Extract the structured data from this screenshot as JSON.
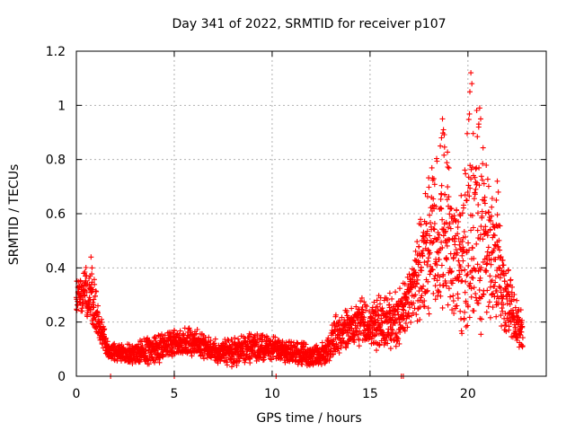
{
  "chart_data": {
    "type": "scatter",
    "title": "Day 341 of 2022, SRMTID for receiver p107",
    "xlabel": "GPS time / hours",
    "ylabel": "SRMTID / TECUs",
    "xlim": [
      0,
      24
    ],
    "ylim": [
      0,
      1.2
    ],
    "xticks": [
      0,
      5,
      10,
      15,
      20
    ],
    "xtick_labels": [
      "0",
      "5",
      "10",
      "15",
      "20"
    ],
    "yticks": [
      0,
      0.2,
      0.4,
      0.6,
      0.8,
      1.0,
      1.2
    ],
    "ytick_labels": [
      "0",
      "0.2",
      "0.4",
      "0.6",
      "0.8",
      "1",
      "1.2"
    ],
    "grid": true,
    "marker": "+",
    "color": "#ff0000",
    "envelope": {
      "description": "approximate median and upper-spread of the point cloud, read from the plot",
      "x": [
        0.0,
        0.4,
        0.8,
        1.2,
        1.6,
        2.0,
        3.0,
        4.0,
        5.0,
        6.0,
        7.0,
        8.0,
        9.0,
        10.0,
        11.0,
        12.0,
        12.8,
        13.3,
        14.0,
        14.5,
        15.0,
        15.5,
        16.0,
        16.5,
        17.0,
        17.5,
        18.0,
        18.4,
        18.8,
        19.2,
        19.6,
        20.0,
        20.4,
        20.8,
        21.2,
        21.6,
        22.0,
        22.4,
        22.8
      ],
      "median": [
        0.28,
        0.3,
        0.27,
        0.17,
        0.1,
        0.08,
        0.08,
        0.09,
        0.12,
        0.12,
        0.09,
        0.08,
        0.1,
        0.1,
        0.08,
        0.07,
        0.08,
        0.15,
        0.17,
        0.19,
        0.19,
        0.18,
        0.19,
        0.21,
        0.26,
        0.36,
        0.44,
        0.5,
        0.52,
        0.42,
        0.38,
        0.48,
        0.55,
        0.46,
        0.44,
        0.32,
        0.26,
        0.2,
        0.15
      ],
      "spread": [
        0.07,
        0.1,
        0.14,
        0.06,
        0.04,
        0.04,
        0.05,
        0.06,
        0.06,
        0.06,
        0.05,
        0.06,
        0.06,
        0.05,
        0.05,
        0.05,
        0.05,
        0.09,
        0.08,
        0.1,
        0.1,
        0.12,
        0.12,
        0.12,
        0.12,
        0.2,
        0.3,
        0.32,
        0.4,
        0.32,
        0.25,
        0.5,
        0.45,
        0.42,
        0.3,
        0.25,
        0.18,
        0.1,
        0.08
      ]
    },
    "n_points": 2700,
    "peaks": [
      {
        "x": 0.75,
        "y": 0.44
      },
      {
        "x": 18.7,
        "y": 0.95
      },
      {
        "x": 20.15,
        "y": 1.12
      },
      {
        "x": 20.6,
        "y": 0.99
      },
      {
        "x": 21.5,
        "y": 0.72
      }
    ]
  }
}
